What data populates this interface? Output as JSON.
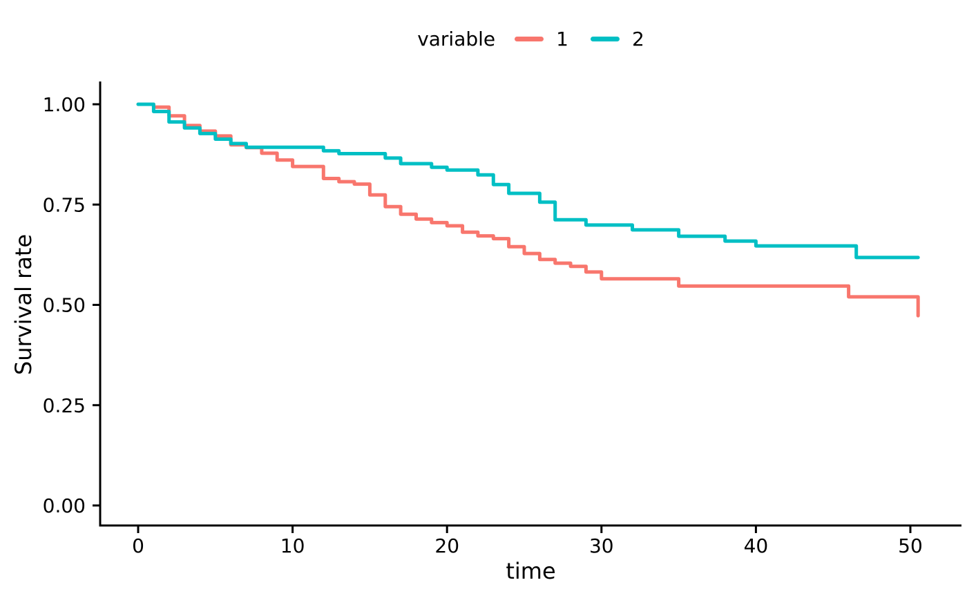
{
  "chart_data": {
    "type": "line",
    "subtype": "step-after-survival-curve",
    "title": "",
    "xlabel": "time",
    "ylabel": "Survival rate",
    "xlim": [
      0,
      51.5
    ],
    "ylim": [
      0,
      1.0
    ],
    "grid": false,
    "axis_color": "#000000",
    "text_color": "#000000",
    "background": "#ffffff",
    "legend": {
      "title": "variable",
      "position": "top-center"
    },
    "x_ticks": [
      {
        "value": 0,
        "label": "0"
      },
      {
        "value": 10,
        "label": "10"
      },
      {
        "value": 20,
        "label": "20"
      },
      {
        "value": 30,
        "label": "30"
      },
      {
        "value": 40,
        "label": "40"
      },
      {
        "value": 50,
        "label": "50"
      }
    ],
    "y_ticks": [
      {
        "value": 0.0,
        "label": "0.00"
      },
      {
        "value": 0.25,
        "label": "0.25"
      },
      {
        "value": 0.5,
        "label": "0.50"
      },
      {
        "value": 0.75,
        "label": "0.75"
      },
      {
        "value": 1.0,
        "label": "1.00"
      }
    ],
    "series": [
      {
        "name": "1",
        "color": "#F8766D",
        "end_time": null,
        "points": [
          [
            0,
            1.0
          ],
          [
            1,
            0.993
          ],
          [
            2,
            0.971
          ],
          [
            3,
            0.947
          ],
          [
            4,
            0.933
          ],
          [
            5,
            0.921
          ],
          [
            6,
            0.899
          ],
          [
            7,
            0.892
          ],
          [
            8,
            0.878
          ],
          [
            9,
            0.861
          ],
          [
            10,
            0.845
          ],
          [
            12,
            0.815
          ],
          [
            13,
            0.807
          ],
          [
            14,
            0.801
          ],
          [
            15,
            0.774
          ],
          [
            16,
            0.745
          ],
          [
            17,
            0.726
          ],
          [
            18,
            0.714
          ],
          [
            19,
            0.705
          ],
          [
            20,
            0.697
          ],
          [
            21,
            0.681
          ],
          [
            22,
            0.672
          ],
          [
            23,
            0.665
          ],
          [
            24,
            0.645
          ],
          [
            25,
            0.628
          ],
          [
            26,
            0.613
          ],
          [
            27,
            0.604
          ],
          [
            28,
            0.596
          ],
          [
            29,
            0.582
          ],
          [
            30,
            0.565
          ],
          [
            35,
            0.547
          ],
          [
            46,
            0.52
          ],
          [
            50.5,
            0.473
          ]
        ]
      },
      {
        "name": "2",
        "color": "#00BFC4",
        "end_time": 50.5,
        "points": [
          [
            0,
            1.0
          ],
          [
            1,
            0.982
          ],
          [
            2,
            0.956
          ],
          [
            3,
            0.941
          ],
          [
            4,
            0.927
          ],
          [
            5,
            0.913
          ],
          [
            6,
            0.902
          ],
          [
            7,
            0.893
          ],
          [
            12,
            0.884
          ],
          [
            13,
            0.877
          ],
          [
            16,
            0.866
          ],
          [
            17,
            0.852
          ],
          [
            19,
            0.843
          ],
          [
            20,
            0.836
          ],
          [
            22,
            0.824
          ],
          [
            23,
            0.8
          ],
          [
            24,
            0.778
          ],
          [
            26,
            0.756
          ],
          [
            27,
            0.712
          ],
          [
            29,
            0.699
          ],
          [
            32,
            0.687
          ],
          [
            35,
            0.671
          ],
          [
            38,
            0.659
          ],
          [
            40,
            0.647
          ],
          [
            46.5,
            0.618
          ]
        ]
      }
    ]
  }
}
